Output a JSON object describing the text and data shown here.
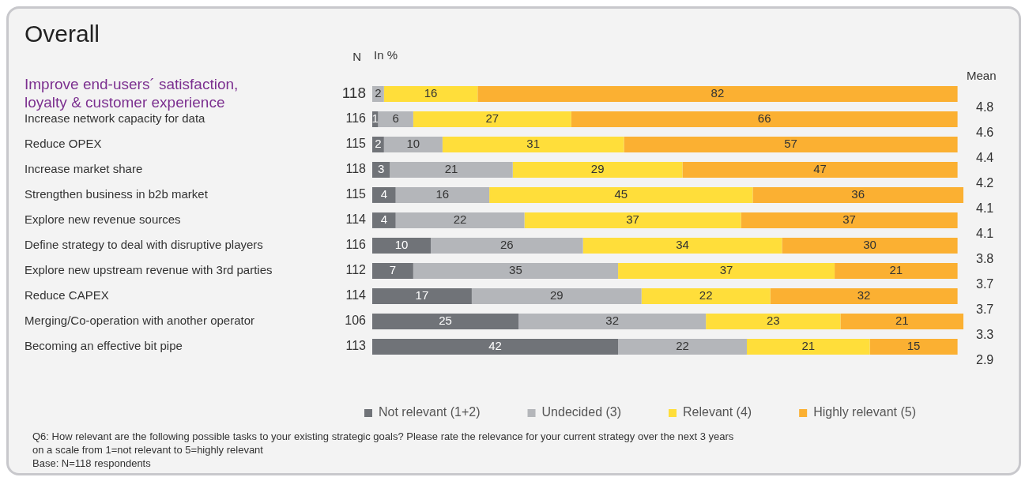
{
  "chart_data": {
    "type": "bar",
    "orientation": "horizontal",
    "stacked": true,
    "title": "Overall",
    "categories": [
      "Improve end-users´ satisfaction, loyalty & customer experience",
      "Increase network capacity for data",
      "Reduce OPEX",
      "Increase market share",
      "Strengthen business in b2b market",
      "Explore new revenue sources",
      "Define strategy to deal with disruptive players",
      "Explore new upstream revenue with 3rd parties",
      "Reduce CAPEX",
      "Merging/Co-operation with another operator",
      "Becoming an effective bit pipe"
    ],
    "series": [
      {
        "name": "Not relevant (1+2)",
        "color": "#707378",
        "values": [
          null,
          1,
          2,
          3,
          4,
          4,
          10,
          7,
          17,
          25,
          42
        ]
      },
      {
        "name": "Undecided (3)",
        "color": "#b4b6ba",
        "values": [
          2,
          6,
          10,
          21,
          16,
          22,
          26,
          35,
          29,
          32,
          22
        ]
      },
      {
        "name": "Relevant (4)",
        "color": "#ffde3a",
        "values": [
          16,
          27,
          31,
          29,
          45,
          37,
          34,
          37,
          22,
          23,
          21
        ]
      },
      {
        "name": "Highly relevant (5)",
        "color": "#fbb032",
        "values": [
          82,
          66,
          57,
          47,
          36,
          37,
          30,
          21,
          32,
          21,
          15
        ]
      }
    ],
    "data_labels": true,
    "legend": "bottom",
    "annotations": [
      "N",
      "In %",
      "Mean",
      "Q6: How relevant are the following possible tasks to your existing strategic goals? Please rate the relevance for your current strategy over the next 3 years",
      "on a scale from 1=not relevant to 5=highly relevant",
      "Base: N=118 respondents",
      "118",
      "116",
      "115",
      "118",
      "115",
      "114",
      "116",
      "112",
      "114",
      "106",
      "113",
      "4.8",
      "4.6",
      "4.4",
      "4.2",
      "4.1",
      "4.1",
      "3.8",
      "3.7",
      "3.7",
      "3.3",
      "2.9"
    ]
  }
}
